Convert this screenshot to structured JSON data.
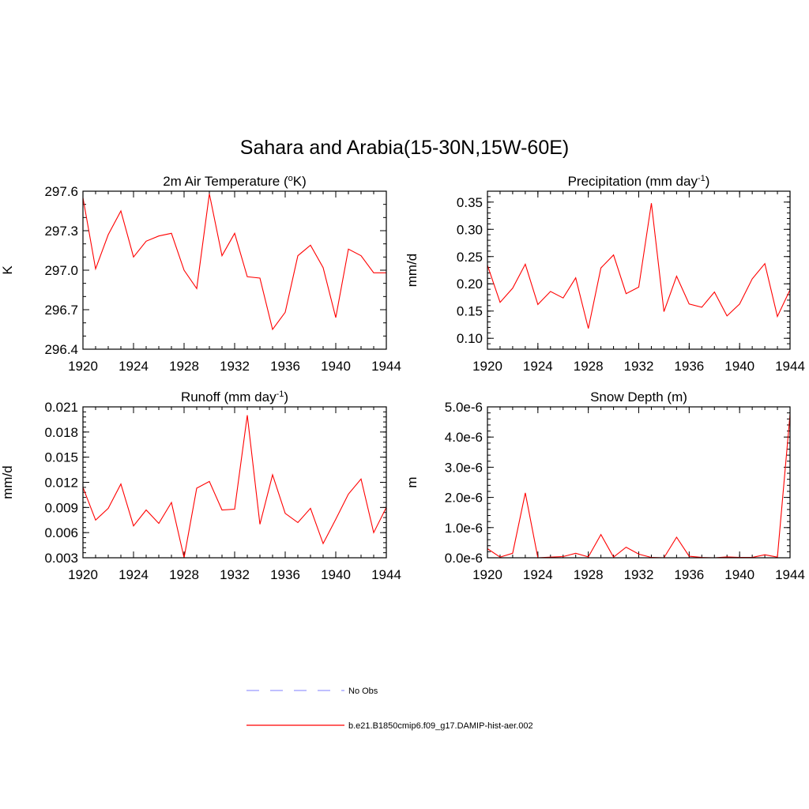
{
  "figure": {
    "title": "Sahara and Arabia(15-30N,15W-60E)"
  },
  "legend": {
    "items": [
      {
        "label": "No Obs",
        "color": "#9999ff",
        "dash": true
      },
      {
        "label": "b.e21.B1850cmip6.f09_g17.DAMIP-hist-aer.002",
        "color": "#ff0000",
        "dash": false
      }
    ]
  },
  "chart_data": [
    {
      "id": "temp",
      "type": "line",
      "title_parts": [
        "2m Air Temperature (",
        "o",
        "K)"
      ],
      "ylabel": "K",
      "xlim": [
        1920,
        1944
      ],
      "ylim": [
        296.4,
        297.6
      ],
      "xticks": [
        "1920",
        "1924",
        "1928",
        "1932",
        "1936",
        "1940",
        "1944"
      ],
      "yticks": [
        "296.4",
        "296.7",
        "297.0",
        "297.3",
        "297.6"
      ],
      "x": [
        1920,
        1921,
        1922,
        1923,
        1924,
        1925,
        1926,
        1927,
        1928,
        1929,
        1930,
        1931,
        1932,
        1933,
        1934,
        1935,
        1936,
        1937,
        1938,
        1939,
        1940,
        1941,
        1942,
        1943,
        1944
      ],
      "series": [
        {
          "color": "#ff0000",
          "values": [
            297.55,
            297.01,
            297.27,
            297.45,
            297.1,
            297.22,
            297.26,
            297.28,
            297.0,
            296.86,
            297.58,
            297.11,
            297.28,
            296.95,
            296.94,
            296.55,
            296.68,
            297.11,
            297.19,
            297.02,
            296.64,
            297.16,
            297.11,
            296.98,
            296.98
          ]
        }
      ]
    },
    {
      "id": "precip",
      "type": "line",
      "title_parts": [
        "Precipitation (mm day",
        "-1",
        ")"
      ],
      "ylabel": "mm/d",
      "xlim": [
        1920,
        1944
      ],
      "ylim": [
        0.08,
        0.37
      ],
      "xticks": [
        "1920",
        "1924",
        "1928",
        "1932",
        "1936",
        "1940",
        "1944"
      ],
      "yticks": [
        "0.10",
        "0.15",
        "0.20",
        "0.25",
        "0.30",
        "0.35"
      ],
      "x": [
        1920,
        1921,
        1922,
        1923,
        1924,
        1925,
        1926,
        1927,
        1928,
        1929,
        1930,
        1931,
        1932,
        1933,
        1934,
        1935,
        1936,
        1937,
        1938,
        1939,
        1940,
        1941,
        1942,
        1943,
        1944
      ],
      "series": [
        {
          "color": "#ff0000",
          "values": [
            0.234,
            0.166,
            0.192,
            0.236,
            0.162,
            0.186,
            0.174,
            0.211,
            0.118,
            0.229,
            0.253,
            0.182,
            0.194,
            0.348,
            0.149,
            0.214,
            0.163,
            0.157,
            0.185,
            0.141,
            0.163,
            0.209,
            0.237,
            0.14,
            0.189
          ]
        }
      ]
    },
    {
      "id": "runoff",
      "type": "line",
      "title_parts": [
        "Runoff (mm day",
        "-1",
        ")"
      ],
      "ylabel": "mm/d",
      "xlim": [
        1920,
        1944
      ],
      "ylim": [
        0.003,
        0.021
      ],
      "xticks": [
        "1920",
        "1924",
        "1928",
        "1932",
        "1936",
        "1940",
        "1944"
      ],
      "yticks": [
        "0.003",
        "0.006",
        "0.009",
        "0.012",
        "0.015",
        "0.018",
        "0.021"
      ],
      "x": [
        1920,
        1921,
        1922,
        1923,
        1924,
        1925,
        1926,
        1927,
        1928,
        1929,
        1930,
        1931,
        1932,
        1933,
        1934,
        1935,
        1936,
        1937,
        1938,
        1939,
        1940,
        1941,
        1942,
        1943,
        1944
      ],
      "series": [
        {
          "color": "#ff0000",
          "values": [
            0.0114,
            0.0075,
            0.0089,
            0.0118,
            0.0068,
            0.0087,
            0.0071,
            0.0096,
            0.003,
            0.0113,
            0.0121,
            0.0087,
            0.0088,
            0.02,
            0.007,
            0.0129,
            0.0083,
            0.0072,
            0.0089,
            0.0047,
            0.0076,
            0.0106,
            0.0124,
            0.006,
            0.009
          ]
        }
      ]
    },
    {
      "id": "snow",
      "type": "line",
      "title_parts": [
        "Snow Depth (m)"
      ],
      "ylabel": "m",
      "xlim": [
        1920,
        1944
      ],
      "ylim": [
        0,
        5e-06
      ],
      "xticks": [
        "1920",
        "1924",
        "1928",
        "1932",
        "1936",
        "1940",
        "1944"
      ],
      "yticks": [
        "0.0e-6",
        "1.0e-6",
        "2.0e-6",
        "3.0e-6",
        "4.0e-6",
        "5.0e-6"
      ],
      "x": [
        1920,
        1921,
        1922,
        1923,
        1924,
        1925,
        1926,
        1927,
        1928,
        1929,
        1930,
        1931,
        1932,
        1933,
        1934,
        1935,
        1936,
        1937,
        1938,
        1939,
        1940,
        1941,
        1942,
        1943,
        1944
      ],
      "series": [
        {
          "color": "#ff0000",
          "values": [
            3e-07,
            2e-08,
            1.5e-07,
            2.15e-06,
            0.0,
            2e-08,
            4e-08,
            1.5e-07,
            3e-08,
            7.7e-07,
            2e-08,
            3.5e-07,
            1.2e-07,
            1e-08,
            0.0,
            6.8e-07,
            5e-08,
            1e-08,
            0.0,
            3e-08,
            1e-08,
            1e-08,
            1e-07,
            2e-08,
            4.75e-06
          ]
        }
      ]
    }
  ]
}
